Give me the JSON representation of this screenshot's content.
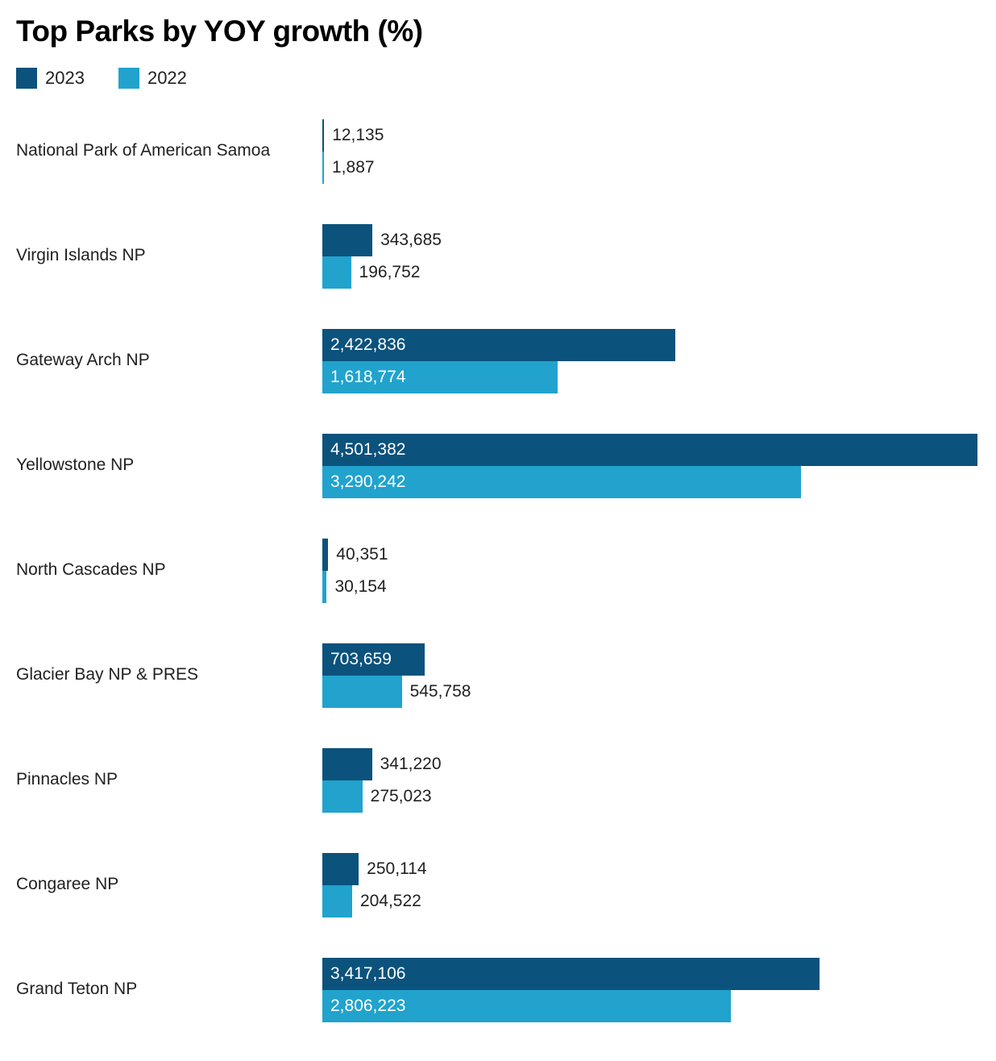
{
  "title": "Top Parks by YOY growth (%)",
  "legend": [
    {
      "label": "2023",
      "color": "#0b527c"
    },
    {
      "label": "2022",
      "color": "#21a3cd"
    }
  ],
  "chart_data": {
    "type": "bar",
    "orientation": "horizontal",
    "title": "Top Parks by YOY growth (%)",
    "xlabel": "",
    "ylabel": "",
    "xlim": [
      0,
      4501382
    ],
    "grid": false,
    "legend_position": "top-left",
    "categories": [
      "National Park of American Samoa",
      "Virgin Islands NP",
      "Gateway Arch NP",
      "Yellowstone NP",
      "North Cascades NP",
      "Glacier Bay NP & PRES",
      "Pinnacles NP",
      "Congaree NP",
      "Grand Teton NP"
    ],
    "series": [
      {
        "name": "2023",
        "color": "#0b527c",
        "values": [
          12135,
          343685,
          2422836,
          4501382,
          40351,
          703659,
          341220,
          250114,
          3417106
        ],
        "labels": [
          "12,135",
          "343,685",
          "2,422,836",
          "4,501,382",
          "40,351",
          "703,659",
          "341,220",
          "250,114",
          "3,417,106"
        ]
      },
      {
        "name": "2022",
        "color": "#21a3cd",
        "values": [
          1887,
          196752,
          1618774,
          3290242,
          30154,
          545758,
          275023,
          204522,
          2806223
        ],
        "labels": [
          "1,887",
          "196,752",
          "1,618,774",
          "3,290,242",
          "30,154",
          "545,758",
          "275,023",
          "204,522",
          "2,806,223"
        ]
      }
    ]
  }
}
